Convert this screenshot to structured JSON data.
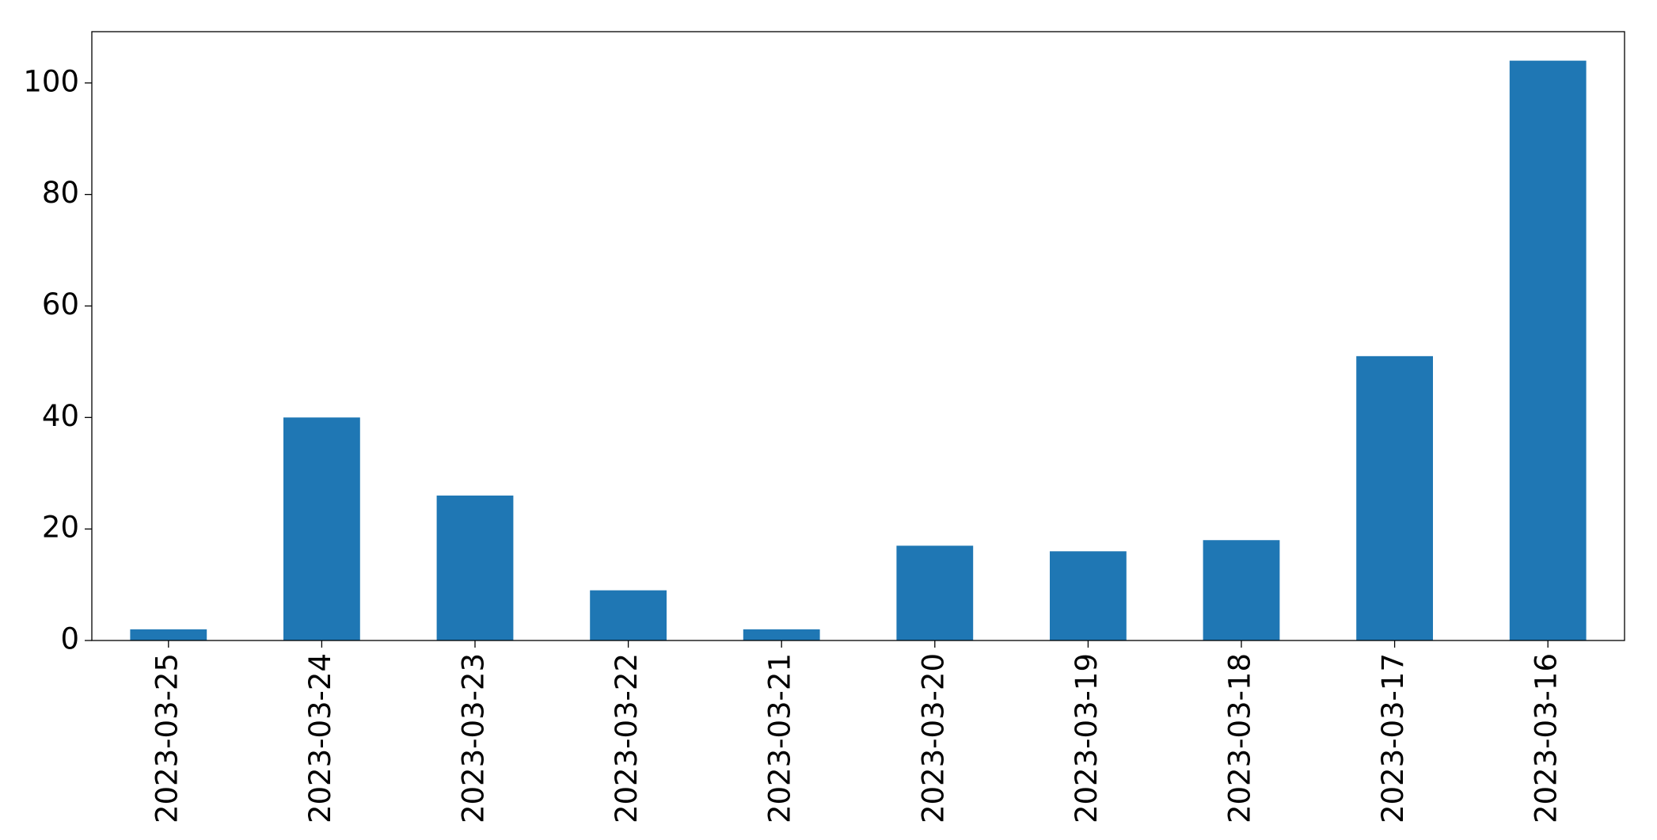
{
  "chart_data": {
    "type": "bar",
    "categories": [
      "2023-03-25",
      "2023-03-24",
      "2023-03-23",
      "2023-03-22",
      "2023-03-21",
      "2023-03-20",
      "2023-03-19",
      "2023-03-18",
      "2023-03-17",
      "2023-03-16"
    ],
    "values": [
      2,
      40,
      26,
      9,
      2,
      17,
      16,
      18,
      51,
      104
    ],
    "color": "#1f77b4",
    "ylim": [
      0,
      109.2
    ],
    "yticks": [
      0,
      20,
      40,
      60,
      80,
      100
    ],
    "grid": false
  }
}
